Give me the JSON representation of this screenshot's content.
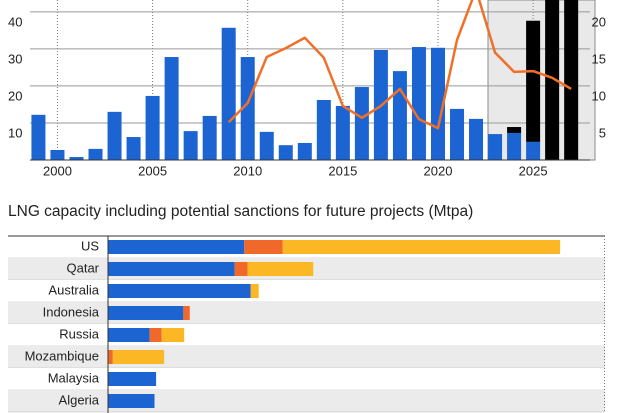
{
  "chart_data": [
    {
      "type": "bar",
      "x": [
        1999,
        2000,
        2001,
        2002,
        2003,
        2004,
        2005,
        2006,
        2007,
        2008,
        2009,
        2010,
        2011,
        2012,
        2013,
        2014,
        2015,
        2016,
        2017,
        2018,
        2019,
        2020,
        2021,
        2022,
        2023,
        2024,
        2025,
        2026,
        2027
      ],
      "xlim": [
        1997.4,
        2028.2
      ],
      "xticks": [
        2000,
        2005,
        2010,
        2015,
        2020,
        2025
      ],
      "ylim": [
        0,
        43.2
      ],
      "yticks": [
        10,
        20,
        30,
        40
      ],
      "y2lim": [
        0,
        21.6
      ],
      "y2ticks": [
        5,
        10,
        15,
        20
      ],
      "grid": true,
      "series": [
        {
          "color": "#1b64d2",
          "values": [
            12.2,
            2.7,
            0.8,
            3,
            13,
            6.2,
            17.3,
            27.8,
            7.8,
            11.9,
            35.7,
            27.8,
            7.6,
            4,
            4.6,
            16.2,
            14.6,
            19.7,
            29.7,
            24,
            30.5,
            30.3,
            13.8,
            11.1,
            7,
            7.3,
            4.9,
            0,
            0
          ]
        },
        {
          "color": "#000000",
          "values": [
            0,
            0,
            0,
            0,
            0,
            0,
            0,
            0,
            0,
            0,
            0,
            0,
            0,
            0,
            0,
            0,
            0,
            0,
            0,
            0,
            0,
            0,
            0,
            0,
            0,
            1.6,
            32.7,
            48,
            46
          ]
        },
        {
          "type": "line",
          "axis": "y2",
          "color": "#f0702a",
          "values": [
            null,
            null,
            null,
            null,
            null,
            null,
            null,
            null,
            null,
            null,
            5.1,
            7.7,
            13.9,
            15.1,
            16.5,
            13.8,
            7.3,
            5.7,
            7.3,
            9.6,
            5.5,
            4.3,
            16.2,
            23,
            14.5,
            11.9,
            12,
            11.1,
            9.6
          ]
        }
      ]
    },
    {
      "type": "hbar",
      "title": "LNG capacity including potential sanctions for future projects (Mtpa)",
      "categories": [
        "US",
        "Qatar",
        "Australia",
        "Indonesia",
        "Russia",
        "Mozambique",
        "Malaysia",
        "Algeria"
      ],
      "xlim": [
        0,
        310
      ],
      "series": [
        {
          "color": "#1b64d2",
          "values": [
            85,
            79,
            89,
            47,
            26,
            0,
            30,
            29
          ]
        },
        {
          "color": "#f0692a",
          "values": [
            24,
            8,
            0,
            4,
            7.5,
            3,
            0,
            0
          ]
        },
        {
          "color": "#fcb824",
          "values": [
            173,
            41,
            5,
            0,
            14,
            32,
            0,
            0
          ]
        }
      ]
    }
  ]
}
